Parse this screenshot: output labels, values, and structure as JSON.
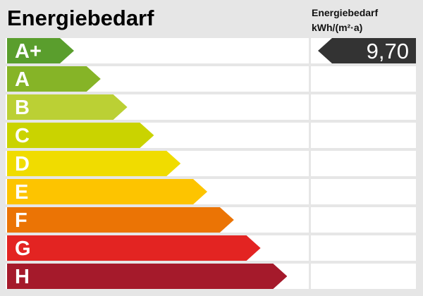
{
  "title": "Energiebedarf",
  "value_header": {
    "line1": "Energiebedarf",
    "line2": "kWh/(m²·a)"
  },
  "value": "9,70",
  "value_class": "A+",
  "classes": [
    {
      "label": "A+",
      "color": "#5a9e2d"
    },
    {
      "label": "A",
      "color": "#86b427"
    },
    {
      "label": "B",
      "color": "#bbd034"
    },
    {
      "label": "C",
      "color": "#cad300"
    },
    {
      "label": "D",
      "color": "#f0dc00"
    },
    {
      "label": "E",
      "color": "#fdc400"
    },
    {
      "label": "F",
      "color": "#eb7405"
    },
    {
      "label": "G",
      "color": "#e32422"
    },
    {
      "label": "H",
      "color": "#a51a2b"
    }
  ]
}
